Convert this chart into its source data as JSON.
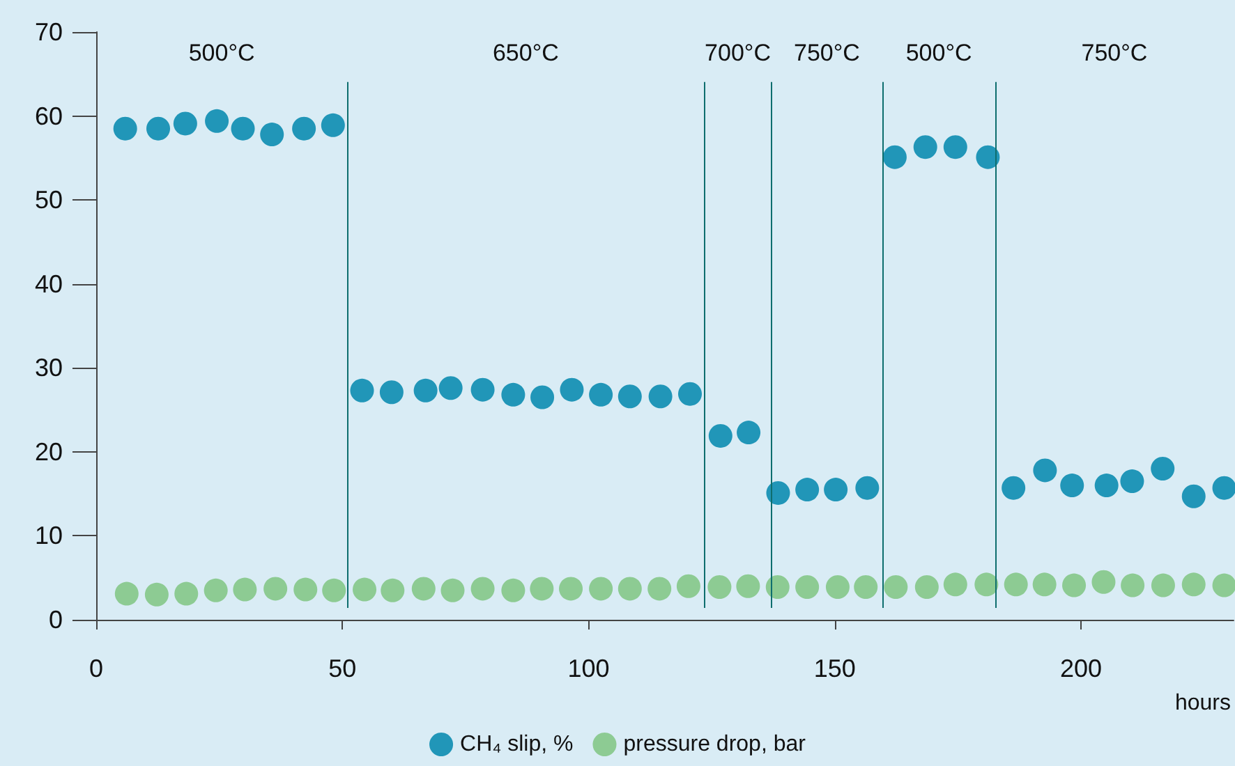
{
  "chart_data": {
    "type": "scatter",
    "xlabel": "hours",
    "xlim": [
      0,
      231
    ],
    "xticks": [
      0,
      50,
      100,
      150,
      200
    ],
    "ylim": [
      0,
      70
    ],
    "yticks": [
      0,
      10,
      20,
      30,
      40,
      50,
      60,
      70
    ],
    "grid": false,
    "legend": "bottom",
    "marker": "circle",
    "series": [
      {
        "name": "CH₄ slip, %",
        "color": "#2196b8",
        "x": [
          5.9,
          12.6,
          18.1,
          24.5,
          29.8,
          35.7,
          42.2,
          48.1,
          54.0,
          60.0,
          66.9,
          72.0,
          78.5,
          84.7,
          90.6,
          96.6,
          102.5,
          108.4,
          114.6,
          120.6,
          126.8,
          132.5,
          138.5,
          144.4,
          150.2,
          156.6,
          162.2,
          168.4,
          174.5,
          181.1,
          186.3,
          192.7,
          198.2,
          205.2,
          210.4,
          216.6,
          222.9,
          229.1
        ],
        "values": [
          58.5,
          58.5,
          59.1,
          59.4,
          58.5,
          57.8,
          58.5,
          58.9,
          27.3,
          27.1,
          27.3,
          27.6,
          27.4,
          26.8,
          26.5,
          27.4,
          26.8,
          26.6,
          26.6,
          26.9,
          21.9,
          22.3,
          15.1,
          15.5,
          15.5,
          15.7,
          55.1,
          56.3,
          56.3,
          55.1,
          15.7,
          17.8,
          16.0,
          16.0,
          16.5,
          18.0,
          14.7,
          15.7
        ]
      },
      {
        "name": "pressure drop, bar",
        "color": "#8dcb93",
        "x": [
          6.2,
          12.3,
          18.3,
          24.3,
          30.2,
          36.4,
          42.5,
          48.3,
          54.5,
          60.2,
          66.5,
          72.4,
          78.5,
          84.7,
          90.5,
          96.4,
          102.5,
          108.4,
          114.4,
          120.3,
          126.6,
          132.4,
          138.4,
          144.4,
          150.6,
          156.3,
          162.4,
          168.7,
          174.5,
          180.8,
          186.8,
          192.6,
          198.6,
          204.6,
          210.5,
          216.7,
          222.9,
          229.1
        ],
        "values": [
          3.1,
          3.0,
          3.1,
          3.5,
          3.6,
          3.7,
          3.6,
          3.5,
          3.6,
          3.5,
          3.7,
          3.5,
          3.7,
          3.5,
          3.7,
          3.7,
          3.7,
          3.7,
          3.7,
          4.0,
          3.9,
          4.0,
          3.9,
          3.9,
          3.9,
          3.9,
          3.9,
          3.9,
          4.2,
          4.2,
          4.2,
          4.2,
          4.1,
          4.5,
          4.1,
          4.1,
          4.2,
          4.1
        ]
      }
    ],
    "ref_lines": [
      {
        "axis": "x",
        "value": 51,
        "color": "#0e6e6e"
      },
      {
        "axis": "x",
        "value": 123.5,
        "color": "#0e6e6e"
      },
      {
        "axis": "x",
        "value": 137.1,
        "color": "#0e6e6e"
      },
      {
        "axis": "x",
        "value": 159.7,
        "color": "#0e6e6e"
      },
      {
        "axis": "x",
        "value": 182.6,
        "color": "#0e6e6e"
      }
    ],
    "annotations": [
      "500°C",
      "650°C",
      "700°C",
      "750°C",
      "500°C",
      "750°C"
    ]
  }
}
